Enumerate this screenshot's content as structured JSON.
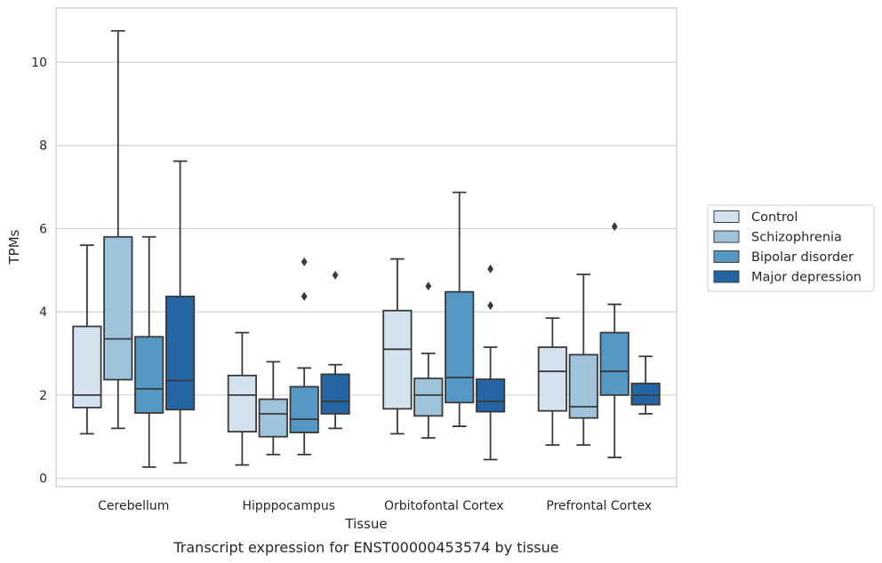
{
  "caption": "Transcript expression for ENST00000453574 by tissue",
  "chart_data": {
    "type": "box",
    "xlabel": "Tissue",
    "ylabel": "TPMs",
    "ylim": [
      -0.2,
      11.3
    ],
    "yticks": [
      0,
      2,
      4,
      6,
      8,
      10
    ],
    "grid": "horizontal",
    "legend_position": "right",
    "categories": [
      "Cerebellum",
      "Hipppocampus",
      "Orbitofontal Cortex",
      "Prefrontal Cortex"
    ],
    "series": [
      {
        "name": "Control",
        "color": "#d4e2f0",
        "boxes": [
          {
            "whislo": 1.07,
            "q1": 1.7,
            "med": 2.0,
            "q3": 3.65,
            "whishi": 5.6,
            "fliers": []
          },
          {
            "whislo": 0.32,
            "q1": 1.12,
            "med": 2.0,
            "q3": 2.47,
            "whishi": 3.5,
            "fliers": []
          },
          {
            "whislo": 1.07,
            "q1": 1.67,
            "med": 3.1,
            "q3": 4.03,
            "whishi": 5.27,
            "fliers": []
          },
          {
            "whislo": 0.8,
            "q1": 1.62,
            "med": 2.57,
            "q3": 3.15,
            "whishi": 3.85,
            "fliers": []
          }
        ]
      },
      {
        "name": "Schizophrenia",
        "color": "#9ec3db",
        "boxes": [
          {
            "whislo": 1.2,
            "q1": 2.37,
            "med": 3.35,
            "q3": 5.8,
            "whishi": 10.75,
            "fliers": []
          },
          {
            "whislo": 0.57,
            "q1": 1.0,
            "med": 1.55,
            "q3": 1.9,
            "whishi": 2.8,
            "fliers": []
          },
          {
            "whislo": 0.97,
            "q1": 1.5,
            "med": 2.0,
            "q3": 2.4,
            "whishi": 3.0,
            "fliers": [
              4.62
            ]
          },
          {
            "whislo": 0.8,
            "q1": 1.45,
            "med": 1.72,
            "q3": 2.97,
            "whishi": 4.9,
            "fliers": []
          }
        ]
      },
      {
        "name": "Bipolar disorder",
        "color": "#5698c4",
        "boxes": [
          {
            "whislo": 0.27,
            "q1": 1.57,
            "med": 2.15,
            "q3": 3.4,
            "whishi": 5.8,
            "fliers": []
          },
          {
            "whislo": 0.57,
            "q1": 1.1,
            "med": 1.42,
            "q3": 2.2,
            "whishi": 2.65,
            "fliers": [
              4.37,
              5.2
            ]
          },
          {
            "whislo": 1.25,
            "q1": 1.82,
            "med": 2.42,
            "q3": 4.48,
            "whishi": 6.87,
            "fliers": []
          },
          {
            "whislo": 0.5,
            "q1": 2.0,
            "med": 2.57,
            "q3": 3.5,
            "whishi": 4.18,
            "fliers": [
              6.05
            ]
          }
        ]
      },
      {
        "name": "Major depression",
        "color": "#2465a4",
        "boxes": [
          {
            "whislo": 0.37,
            "q1": 1.65,
            "med": 2.35,
            "q3": 4.37,
            "whishi": 7.62,
            "fliers": []
          },
          {
            "whislo": 1.2,
            "q1": 1.55,
            "med": 1.85,
            "q3": 2.5,
            "whishi": 2.73,
            "fliers": [
              4.88
            ]
          },
          {
            "whislo": 0.45,
            "q1": 1.6,
            "med": 1.85,
            "q3": 2.38,
            "whishi": 3.15,
            "fliers": [
              4.15,
              5.03
            ]
          },
          {
            "whislo": 1.55,
            "q1": 1.77,
            "med": 2.0,
            "q3": 2.28,
            "whishi": 2.93,
            "fliers": []
          }
        ]
      }
    ]
  }
}
